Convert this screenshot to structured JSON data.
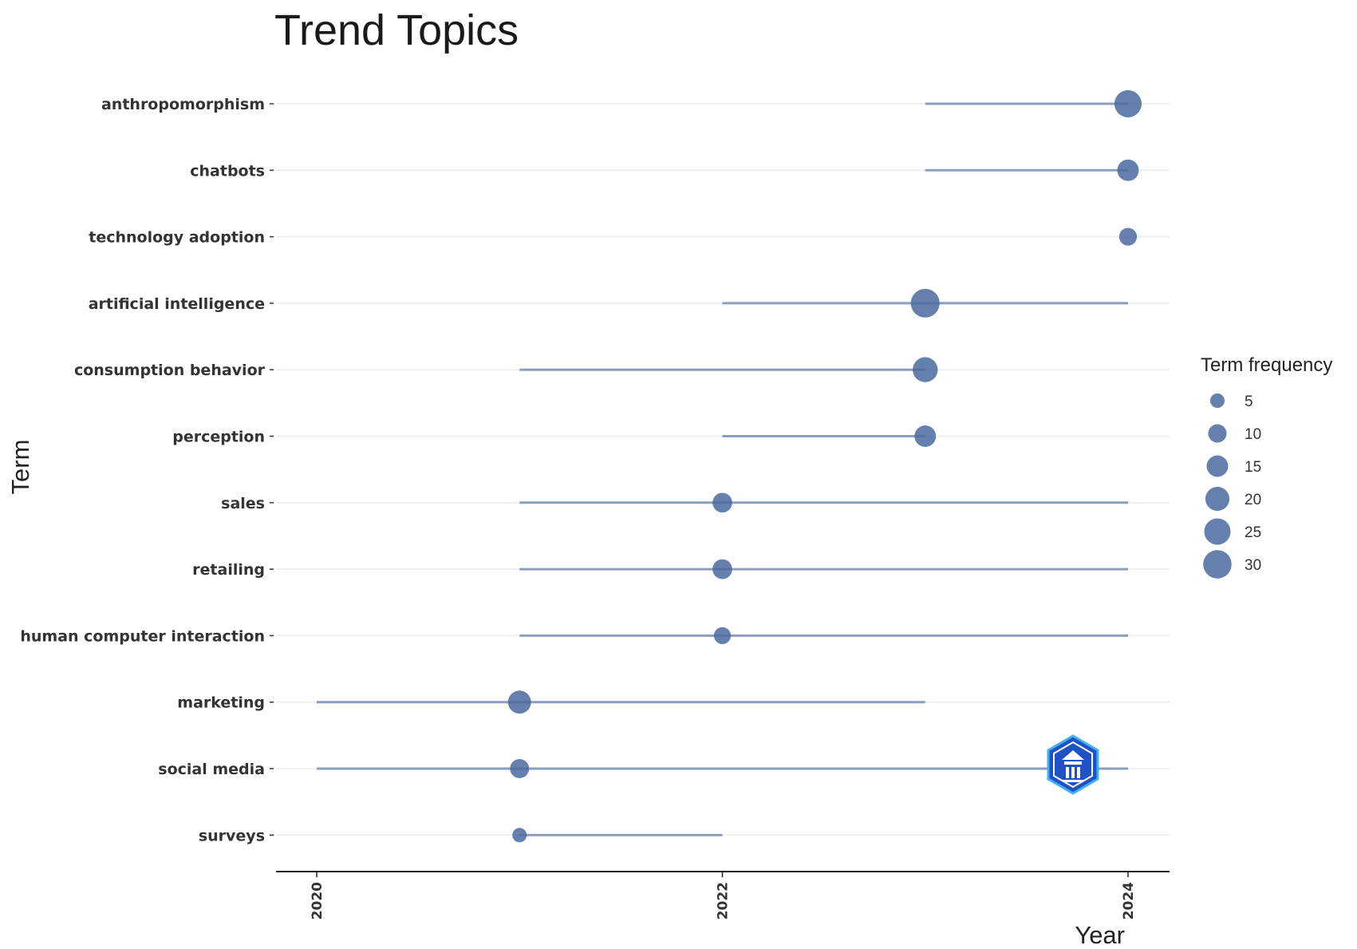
{
  "chart_data": {
    "type": "scatter",
    "title": "Trend Topics",
    "xlabel": "Year",
    "ylabel": "Term",
    "xlim": [
      2019.9,
      2024.2
    ],
    "x_ticks": [
      "2020",
      "2022",
      "2024"
    ],
    "grid": true,
    "legend": {
      "title": "Term frequency",
      "placement": "right",
      "entries": [
        {
          "label": "5",
          "value": 5
        },
        {
          "label": "10",
          "value": 10
        },
        {
          "label": "15",
          "value": 15
        },
        {
          "label": "20",
          "value": 20
        },
        {
          "label": "25",
          "value": 25
        },
        {
          "label": "30",
          "value": 30
        }
      ]
    },
    "terms": [
      {
        "term": "anthropomorphism",
        "year_q1": 2023,
        "year_median": 2024,
        "year_q3": 2024,
        "freq": 27
      },
      {
        "term": "chatbots",
        "year_q1": 2023,
        "year_median": 2024,
        "year_q3": 2024,
        "freq": 15
      },
      {
        "term": "technology adoption",
        "year_q1": 2024,
        "year_median": 2024,
        "year_q3": 2024,
        "freq": 9
      },
      {
        "term": "artificial intelligence",
        "year_q1": 2022,
        "year_median": 2023,
        "year_q3": 2024,
        "freq": 31
      },
      {
        "term": "consumption behavior",
        "year_q1": 2021,
        "year_median": 2023,
        "year_q3": 2023,
        "freq": 22
      },
      {
        "term": "perception",
        "year_q1": 2022,
        "year_median": 2023,
        "year_q3": 2023,
        "freq": 15
      },
      {
        "term": "sales",
        "year_q1": 2021,
        "year_median": 2022,
        "year_q3": 2024,
        "freq": 12
      },
      {
        "term": "retailing",
        "year_q1": 2021,
        "year_median": 2022,
        "year_q3": 2024,
        "freq": 12
      },
      {
        "term": "human computer interaction",
        "year_q1": 2021,
        "year_median": 2022,
        "year_q3": 2024,
        "freq": 8
      },
      {
        "term": "marketing",
        "year_q1": 2020,
        "year_median": 2021,
        "year_q3": 2023,
        "freq": 18
      },
      {
        "term": "social media",
        "year_q1": 2020,
        "year_median": 2021,
        "year_q3": 2024,
        "freq": 11
      },
      {
        "term": "surveys",
        "year_q1": 2021,
        "year_median": 2021,
        "year_q3": 2022,
        "freq": 5
      }
    ]
  },
  "colors": {
    "point": "#4a6a9e",
    "segment": "#8e9cbe",
    "grid": "#ebebeb",
    "axis": "#222222",
    "logo_dark": "#1f52c4",
    "logo_light": "#3fb0f0"
  },
  "watermark_icon": "hexagon-logo-icon"
}
